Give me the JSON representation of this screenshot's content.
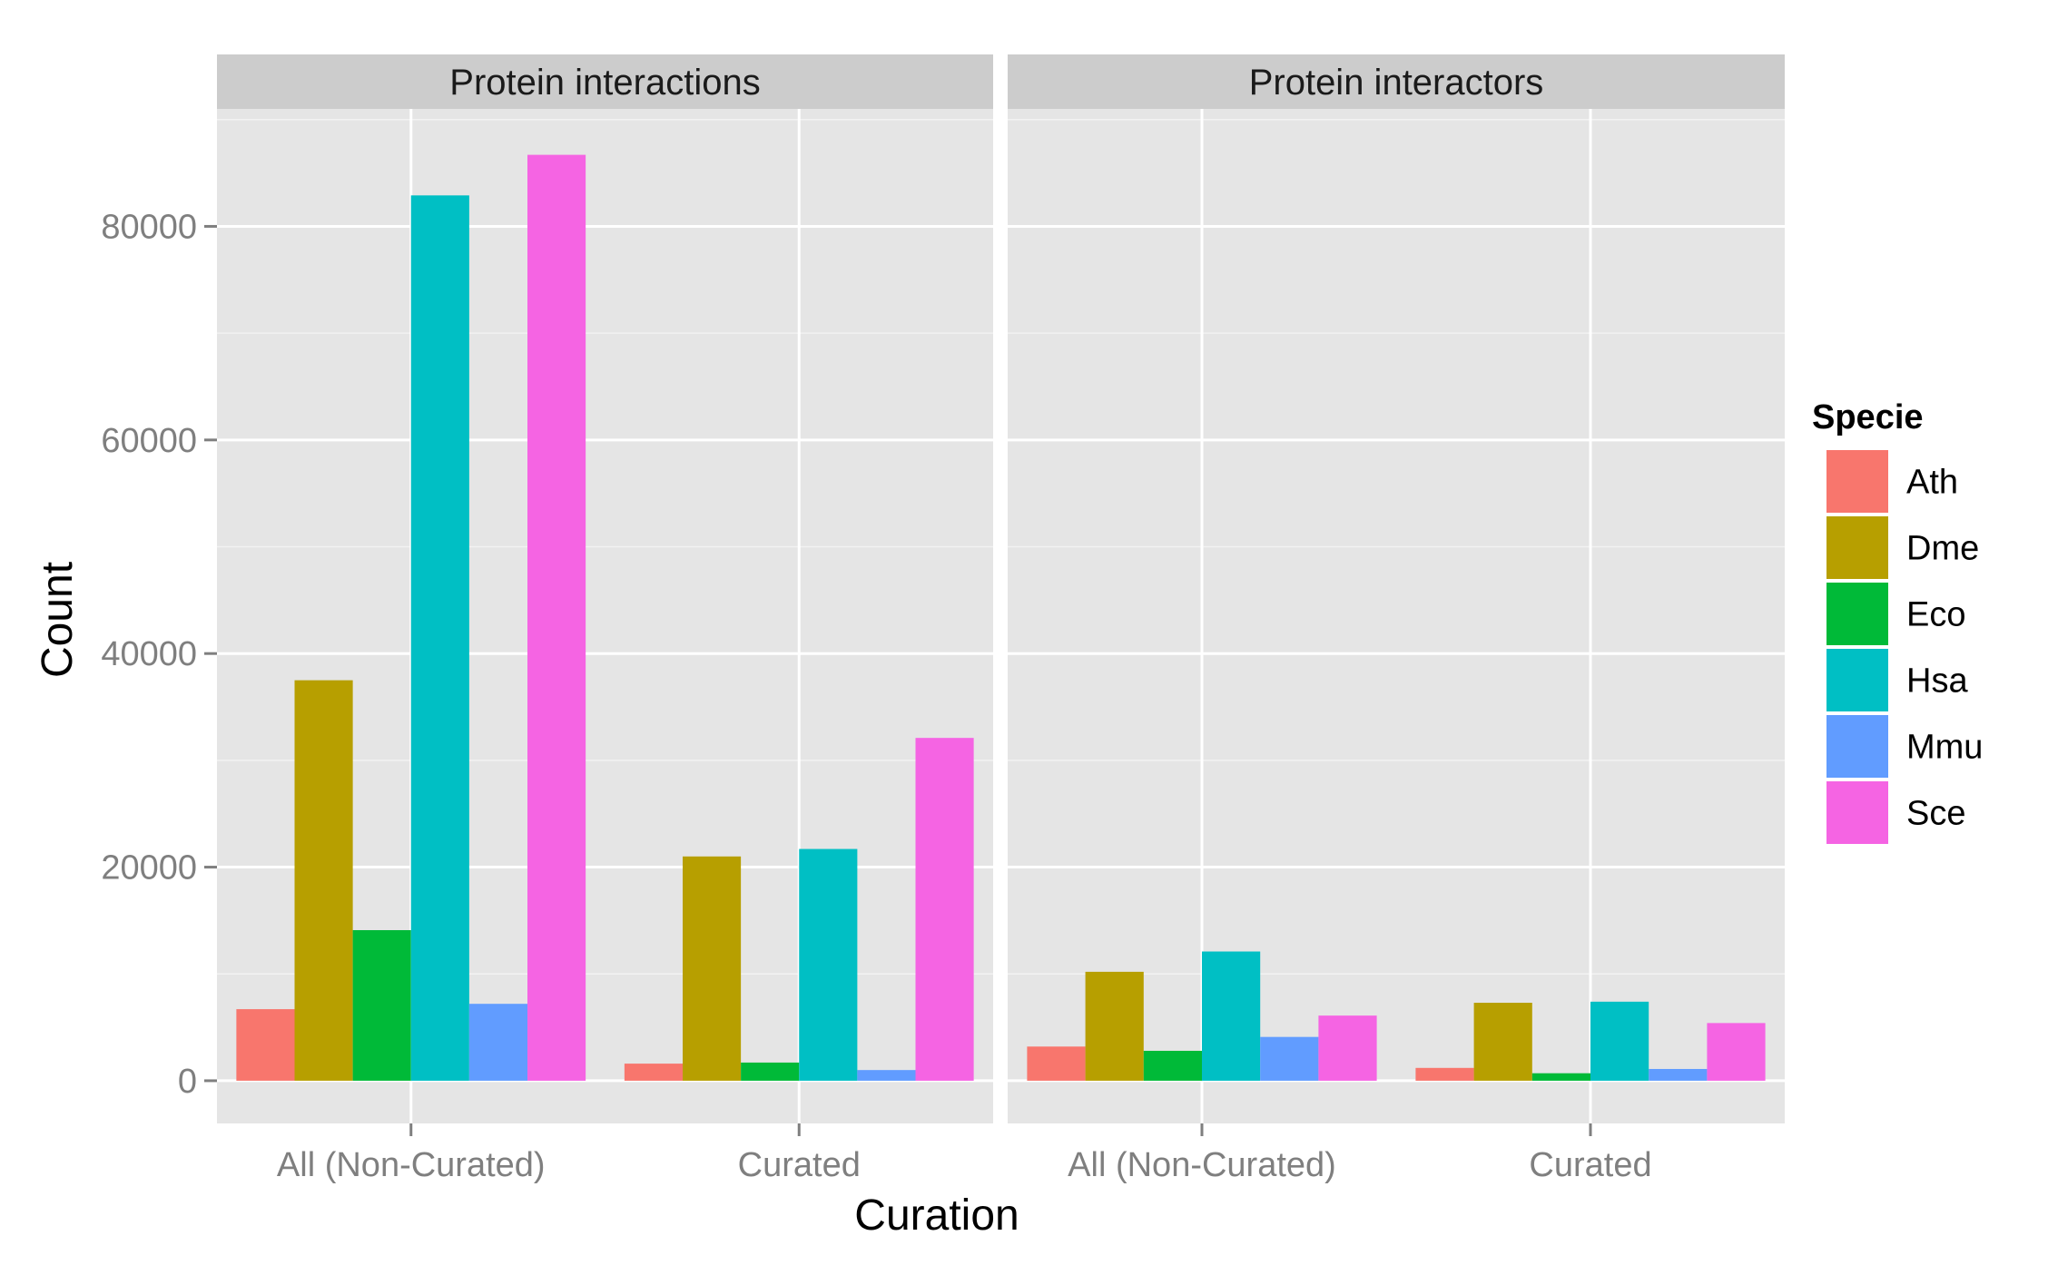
{
  "chart_data": {
    "type": "bar",
    "xlabel": "Curation",
    "ylabel": "Count",
    "ylim": [
      -4000,
      91000
    ],
    "yticks": [
      0,
      20000,
      40000,
      60000,
      80000
    ],
    "ytick_labels": [
      "0",
      "20000",
      "40000",
      "60000",
      "80000"
    ],
    "categories": [
      "All (Non-Curated)",
      "Curated"
    ],
    "grid": true,
    "legend": {
      "title": "Specie",
      "placement": "right",
      "entries": [
        "Ath",
        "Dme",
        "Eco",
        "Hsa",
        "Mmu",
        "Sce"
      ]
    },
    "colors": {
      "Ath": "#F8766D",
      "Dme": "#B79F00",
      "Eco": "#00BA38",
      "Hsa": "#00BFC4",
      "Mmu": "#619CFF",
      "Sce": "#F564E3"
    },
    "panels": [
      {
        "title": "Protein interactions",
        "series": [
          {
            "name": "Ath",
            "values": [
              6700,
              1600
            ]
          },
          {
            "name": "Dme",
            "values": [
              37500,
              21000
            ]
          },
          {
            "name": "Eco",
            "values": [
              14100,
              1700
            ]
          },
          {
            "name": "Hsa",
            "values": [
              82900,
              21700
            ]
          },
          {
            "name": "Mmu",
            "values": [
              7200,
              1000
            ]
          },
          {
            "name": "Sce",
            "values": [
              86700,
              32100
            ]
          }
        ]
      },
      {
        "title": "Protein interactors",
        "series": [
          {
            "name": "Ath",
            "values": [
              3200,
              1200
            ]
          },
          {
            "name": "Dme",
            "values": [
              10200,
              7300
            ]
          },
          {
            "name": "Eco",
            "values": [
              2800,
              700
            ]
          },
          {
            "name": "Hsa",
            "values": [
              12100,
              7400
            ]
          },
          {
            "name": "Mmu",
            "values": [
              4100,
              1100
            ]
          },
          {
            "name": "Sce",
            "values": [
              6100,
              5400
            ]
          }
        ]
      }
    ]
  }
}
